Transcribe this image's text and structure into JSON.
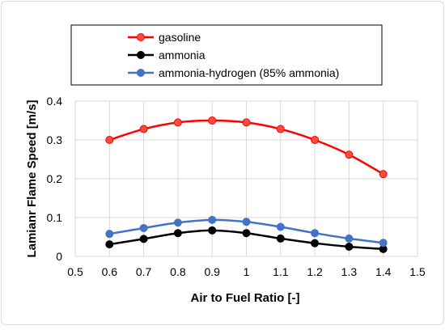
{
  "chart_data": {
    "type": "line",
    "title": "",
    "xlabel": "Air to Fuel Ratio [-]",
    "ylabel": "Lamianr Flame Speed [m/s]",
    "xlim": [
      0.5,
      1.5
    ],
    "ylim": [
      0,
      0.4
    ],
    "x_ticks": [
      0.5,
      0.6,
      0.7,
      0.8,
      0.9,
      1.0,
      1.1,
      1.2,
      1.3,
      1.4,
      1.5
    ],
    "x_tick_labels": [
      "0.5",
      "0.6",
      "0.7",
      "0.8",
      "0.9",
      "1",
      "1.1",
      "1.2",
      "1.3",
      "1.4",
      "1.5"
    ],
    "y_ticks": [
      0,
      0.1,
      0.2,
      0.3,
      0.4
    ],
    "y_tick_labels": [
      "0",
      "0.1",
      "0.2",
      "0.3",
      "0.4"
    ],
    "grid": true,
    "legend_position": "top",
    "x": [
      0.6,
      0.7,
      0.8,
      0.9,
      1.0,
      1.1,
      1.2,
      1.3,
      1.4
    ],
    "series": [
      {
        "name": "gasoline",
        "color": "#ff0000",
        "marker_color": "#ff4a3d",
        "values": [
          0.3,
          0.328,
          0.345,
          0.35,
          0.345,
          0.328,
          0.3,
          0.262,
          0.212
        ]
      },
      {
        "name": "ammonia",
        "color": "#000000",
        "marker_color": "#000000",
        "values": [
          0.031,
          0.045,
          0.06,
          0.067,
          0.06,
          0.046,
          0.034,
          0.025,
          0.019
        ]
      },
      {
        "name": "ammonia-hydrogen (85% ammonia)",
        "color": "#4472c4",
        "marker_color": "#4472c4",
        "values": [
          0.058,
          0.073,
          0.087,
          0.094,
          0.089,
          0.076,
          0.06,
          0.046,
          0.035
        ]
      }
    ]
  }
}
